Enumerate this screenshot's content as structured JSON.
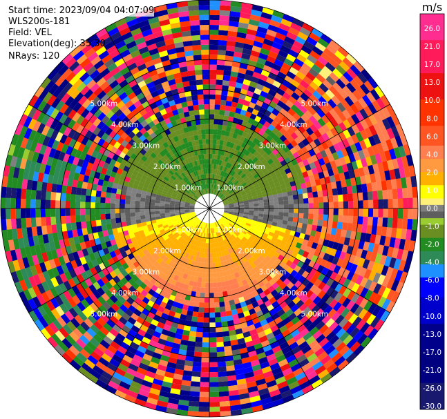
{
  "header": {
    "start_time": "Start time: 2023/09/04 04:07:09",
    "instrument": "WLS200s-181",
    "field": "Field: VEL",
    "elevation": "Elevation(deg): 35.30",
    "nrays": "NRays: 120"
  },
  "chart_data": {
    "type": "heatmap",
    "projection": "polar-ppi",
    "field": "VEL",
    "n_rays": 120,
    "range_rings_km": [
      1,
      2,
      3,
      4,
      5
    ],
    "range_ring_labels": [
      "1.00km",
      "2.00km",
      "3.00km",
      "4.00km",
      "5.00km"
    ],
    "max_range_km": 7.0,
    "colorbar": {
      "unit": "m/s",
      "min": -30.0,
      "max": 30.0,
      "tick_labels": [
        "26.0",
        "21.0",
        "17.0",
        "13.0",
        "10.0",
        "8.0",
        "6.0",
        "4.0",
        "2.0",
        "1.0",
        "0.0",
        "-1.0",
        "-2.0",
        "-4.0",
        "-6.0",
        "-8.0",
        "-10.0",
        "-13.0",
        "-17.0",
        "-21.0",
        "-26.0",
        "-30.0"
      ],
      "bins": [
        {
          "lo": 26,
          "hi": 30,
          "color": "#ff2d8f"
        },
        {
          "lo": 21,
          "hi": 26,
          "color": "#ff1a5a"
        },
        {
          "lo": 17,
          "hi": 21,
          "color": "#ee1111"
        },
        {
          "lo": 13,
          "hi": 17,
          "color": "#ff3300"
        },
        {
          "lo": 10,
          "hi": 13,
          "color": "#ff5522"
        },
        {
          "lo": 8,
          "hi": 10,
          "color": "#ff7f50"
        },
        {
          "lo": 6,
          "hi": 8,
          "color": "#ff9a40"
        },
        {
          "lo": 4,
          "hi": 6,
          "color": "#ffb000"
        },
        {
          "lo": 2,
          "hi": 4,
          "color": "#ffff00"
        },
        {
          "lo": 1,
          "hi": 2,
          "color": "#fff07a"
        },
        {
          "lo": 0,
          "hi": 1,
          "color": "#808080"
        },
        {
          "lo": -1,
          "hi": 0,
          "color": "#5e5e5e"
        },
        {
          "lo": -2,
          "hi": -1,
          "color": "#9acd32"
        },
        {
          "lo": -4,
          "hi": -2,
          "color": "#6b8e23"
        },
        {
          "lo": -6,
          "hi": -4,
          "color": "#228b22"
        },
        {
          "lo": -8,
          "hi": -6,
          "color": "#2e8b57"
        },
        {
          "lo": -10,
          "hi": -8,
          "color": "#1e90ff"
        },
        {
          "lo": -13,
          "hi": -10,
          "color": "#0000ff"
        },
        {
          "lo": -17,
          "hi": -13,
          "color": "#0000cd"
        },
        {
          "lo": -21,
          "hi": -17,
          "color": "#00008b"
        },
        {
          "lo": -26,
          "hi": -21,
          "color": "#000080"
        },
        {
          "lo": -30,
          "hi": -26,
          "color": "#191970"
        }
      ]
    }
  }
}
